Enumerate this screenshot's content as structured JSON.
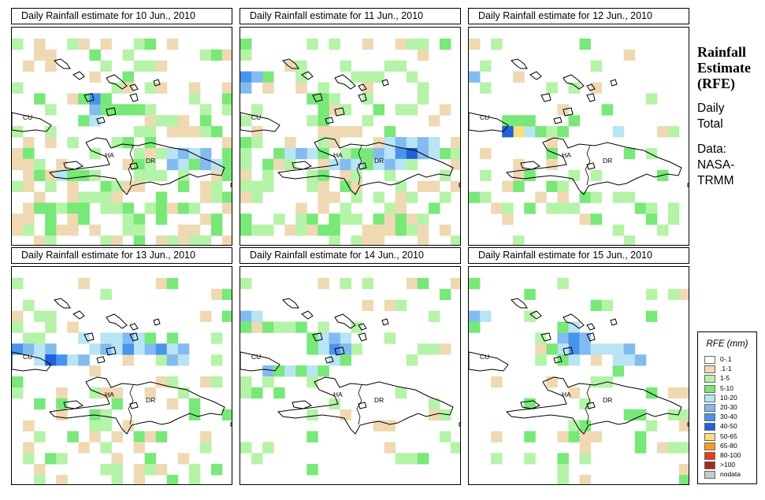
{
  "side": {
    "title_lines": [
      "Rainfall",
      "Estimate",
      "(RFE)"
    ],
    "period_lines": [
      "Daily",
      "Total"
    ],
    "source_lines": [
      "Data:",
      "NASA-",
      "TRMM"
    ]
  },
  "legend": {
    "title": "RFE (mm)",
    "items": [
      {
        "label": "0-.1",
        "color": "#ffffff"
      },
      {
        "label": ".1-1",
        "color": "#efd9b3"
      },
      {
        "label": "1-5",
        "color": "#b5f3a8"
      },
      {
        "label": "5-10",
        "color": "#78e878"
      },
      {
        "label": "10-20",
        "color": "#b8e4f4"
      },
      {
        "label": "20-30",
        "color": "#83bbf0"
      },
      {
        "label": "30-40",
        "color": "#4a93ea"
      },
      {
        "label": "40-50",
        "color": "#2060d8"
      },
      {
        "label": "50-65",
        "color": "#f5e07a"
      },
      {
        "label": "65-80",
        "color": "#f5a020"
      },
      {
        "label": "80-100",
        "color": "#e63c1a"
      },
      {
        "label": ">100",
        "color": "#a82820"
      },
      {
        "label": "nodata",
        "color": "#c8c8c8"
      }
    ]
  },
  "panels": [
    {
      "title": "Daily Rainfall estimate for  10 Jun., 2010",
      "labels": {
        "cu": "CU",
        "ha": "HA",
        "dr": "DR"
      },
      "wet": 0.38,
      "cells": [
        [
          2,
          2,
          1
        ],
        [
          3,
          2,
          1
        ],
        [
          6,
          6,
          3
        ],
        [
          7,
          6,
          6
        ],
        [
          7,
          7,
          5
        ],
        [
          8,
          6,
          3
        ],
        [
          8,
          7,
          3
        ],
        [
          9,
          7,
          3
        ],
        [
          10,
          7,
          3
        ],
        [
          11,
          7,
          3
        ],
        [
          12,
          7,
          2
        ],
        [
          13,
          8,
          2
        ],
        [
          6,
          8,
          3
        ],
        [
          7,
          8,
          4
        ],
        [
          14,
          11,
          4
        ],
        [
          15,
          11,
          5
        ],
        [
          16,
          11,
          4
        ],
        [
          17,
          11,
          5
        ],
        [
          14,
          12,
          5
        ],
        [
          15,
          12,
          4
        ],
        [
          16,
          12,
          3
        ],
        [
          17,
          12,
          5
        ],
        [
          18,
          12,
          4
        ],
        [
          4,
          13,
          4
        ],
        [
          5,
          13,
          3
        ],
        [
          6,
          13,
          3
        ],
        [
          7,
          13,
          2
        ],
        [
          8,
          14,
          3
        ]
      ]
    },
    {
      "title": "Daily Rainfall estimate for  11 Jun., 2010",
      "labels": {
        "cu": "CU",
        "ha": "HA",
        "dr": "DR"
      },
      "wet": 0.42,
      "cells": [
        [
          0,
          4,
          6
        ],
        [
          1,
          4,
          5
        ],
        [
          0,
          5,
          5
        ],
        [
          6,
          6,
          3
        ],
        [
          7,
          6,
          3
        ],
        [
          8,
          6,
          2
        ],
        [
          7,
          7,
          3
        ],
        [
          13,
          10,
          4
        ],
        [
          14,
          10,
          5
        ],
        [
          15,
          10,
          4
        ],
        [
          16,
          10,
          5
        ],
        [
          17,
          10,
          4
        ],
        [
          12,
          11,
          5
        ],
        [
          13,
          11,
          4
        ],
        [
          14,
          11,
          6
        ],
        [
          15,
          11,
          7
        ],
        [
          16,
          11,
          5
        ],
        [
          17,
          11,
          4
        ],
        [
          18,
          11,
          3
        ],
        [
          4,
          11,
          4
        ],
        [
          5,
          11,
          5
        ],
        [
          6,
          11,
          4
        ],
        [
          7,
          11,
          3
        ],
        [
          8,
          12,
          4
        ],
        [
          9,
          12,
          5
        ],
        [
          10,
          12,
          4
        ],
        [
          11,
          12,
          3
        ],
        [
          12,
          12,
          4
        ],
        [
          13,
          12,
          5
        ],
        [
          14,
          12,
          4
        ]
      ]
    },
    {
      "title": "Daily Rainfall estimate for  12 Jun., 2010",
      "labels": {
        "cu": "CU",
        "ha": "HA",
        "dr": "DR"
      },
      "wet": 0.16,
      "cells": [
        [
          0,
          4,
          5
        ],
        [
          3,
          8,
          3
        ],
        [
          4,
          8,
          3
        ],
        [
          5,
          8,
          3
        ],
        [
          4,
          9,
          8
        ],
        [
          3,
          9,
          7
        ],
        [
          5,
          9,
          4
        ],
        [
          6,
          9,
          3
        ],
        [
          7,
          9,
          2
        ],
        [
          8,
          9,
          3
        ],
        [
          13,
          9,
          4
        ]
      ]
    },
    {
      "title": "Daily Rainfall estimate for  13 Jun., 2010",
      "labels": {
        "cu": "CU",
        "ha": "HA",
        "dr": "DR"
      },
      "wet": 0.22,
      "cells": [
        [
          0,
          7,
          6
        ],
        [
          1,
          7,
          5
        ],
        [
          2,
          7,
          4
        ],
        [
          3,
          7,
          5
        ],
        [
          2,
          8,
          4
        ],
        [
          3,
          8,
          7
        ],
        [
          4,
          8,
          6
        ],
        [
          5,
          8,
          4
        ],
        [
          6,
          8,
          5
        ],
        [
          7,
          7,
          4
        ],
        [
          8,
          7,
          5
        ],
        [
          9,
          7,
          4
        ],
        [
          10,
          7,
          6
        ],
        [
          11,
          7,
          4
        ],
        [
          12,
          7,
          5
        ],
        [
          13,
          7,
          6
        ],
        [
          14,
          7,
          4
        ],
        [
          15,
          7,
          5
        ],
        [
          6,
          6,
          4
        ],
        [
          8,
          6,
          4
        ],
        [
          9,
          6,
          4
        ],
        [
          10,
          6,
          5
        ],
        [
          11,
          6,
          4
        ],
        [
          12,
          6,
          3
        ],
        [
          14,
          8,
          5
        ],
        [
          15,
          8,
          4
        ]
      ]
    },
    {
      "title": "Daily Rainfall estimate for  14 Jun., 2010",
      "labels": {
        "cu": "CU",
        "ha": "HA",
        "dr": "DR"
      },
      "wet": 0.14,
      "cells": [
        [
          0,
          4,
          5
        ],
        [
          1,
          4,
          4
        ],
        [
          0,
          5,
          3
        ],
        [
          6,
          6,
          3
        ],
        [
          7,
          6,
          4
        ],
        [
          8,
          6,
          5
        ],
        [
          9,
          6,
          4
        ],
        [
          8,
          7,
          6
        ],
        [
          9,
          7,
          5
        ],
        [
          7,
          7,
          4
        ],
        [
          6,
          7,
          3
        ],
        [
          8,
          8,
          4
        ],
        [
          9,
          8,
          3
        ],
        [
          2,
          9,
          5
        ],
        [
          3,
          9,
          3
        ],
        [
          4,
          9,
          4
        ],
        [
          5,
          9,
          3
        ],
        [
          6,
          9,
          4
        ],
        [
          7,
          9,
          3
        ]
      ]
    },
    {
      "title": "Daily Rainfall estimate for  15 Jun., 2010",
      "labels": {
        "cu": "CU",
        "ha": "HA",
        "dr": "DR"
      },
      "wet": 0.14,
      "cells": [
        [
          0,
          4,
          5
        ],
        [
          1,
          4,
          4
        ],
        [
          0,
          5,
          3
        ],
        [
          8,
          5,
          3
        ],
        [
          9,
          5,
          4
        ],
        [
          9,
          6,
          6
        ],
        [
          10,
          6,
          5
        ],
        [
          8,
          6,
          5
        ],
        [
          9,
          7,
          6
        ],
        [
          10,
          7,
          5
        ],
        [
          11,
          7,
          4
        ],
        [
          8,
          7,
          4
        ],
        [
          7,
          7,
          3
        ],
        [
          12,
          7,
          4
        ],
        [
          13,
          7,
          4
        ],
        [
          14,
          7,
          5
        ],
        [
          13,
          8,
          4
        ],
        [
          14,
          8,
          4
        ],
        [
          15,
          8,
          5
        ],
        [
          8,
          8,
          3
        ],
        [
          9,
          8,
          4
        ]
      ]
    }
  ]
}
